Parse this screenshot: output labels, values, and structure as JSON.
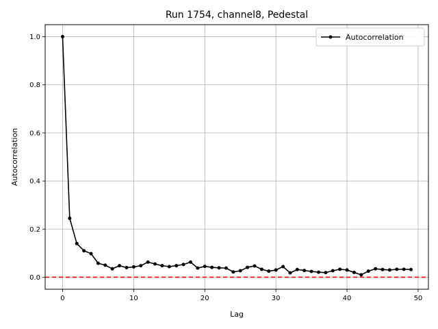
{
  "chart_data": {
    "type": "line",
    "title": "Run 1754, channel8, Pedestal",
    "xlabel": "Lag",
    "ylabel": "Autocorrelation",
    "xlim": [
      -2.45,
      51.45
    ],
    "ylim": [
      -0.05,
      1.05
    ],
    "xticks": [
      0,
      10,
      20,
      30,
      40,
      50
    ],
    "yticks": [
      0.0,
      0.2,
      0.4,
      0.6,
      0.8,
      1.0
    ],
    "grid": true,
    "legend_position": "top-right",
    "reference_line": {
      "y": 0.0,
      "color": "#ff0000",
      "style": "dashed"
    },
    "series": [
      {
        "name": "Autocorrelation",
        "color": "#000000",
        "marker": "circle",
        "x": [
          0,
          1,
          2,
          3,
          4,
          5,
          6,
          7,
          8,
          9,
          10,
          11,
          12,
          13,
          14,
          15,
          16,
          17,
          18,
          19,
          20,
          21,
          22,
          23,
          24,
          25,
          26,
          27,
          28,
          29,
          30,
          31,
          32,
          33,
          34,
          35,
          36,
          37,
          38,
          39,
          40,
          41,
          42,
          43,
          44,
          45,
          46,
          47,
          48,
          49
        ],
        "y": [
          1.0,
          0.245,
          0.14,
          0.11,
          0.098,
          0.058,
          0.05,
          0.035,
          0.048,
          0.04,
          0.043,
          0.048,
          0.063,
          0.055,
          0.048,
          0.044,
          0.048,
          0.053,
          0.063,
          0.038,
          0.045,
          0.041,
          0.039,
          0.038,
          0.022,
          0.027,
          0.041,
          0.047,
          0.033,
          0.025,
          0.03,
          0.044,
          0.018,
          0.032,
          0.028,
          0.024,
          0.021,
          0.019,
          0.027,
          0.033,
          0.03,
          0.02,
          0.01,
          0.025,
          0.035,
          0.032,
          0.03,
          0.033,
          0.033,
          0.032
        ]
      }
    ]
  }
}
